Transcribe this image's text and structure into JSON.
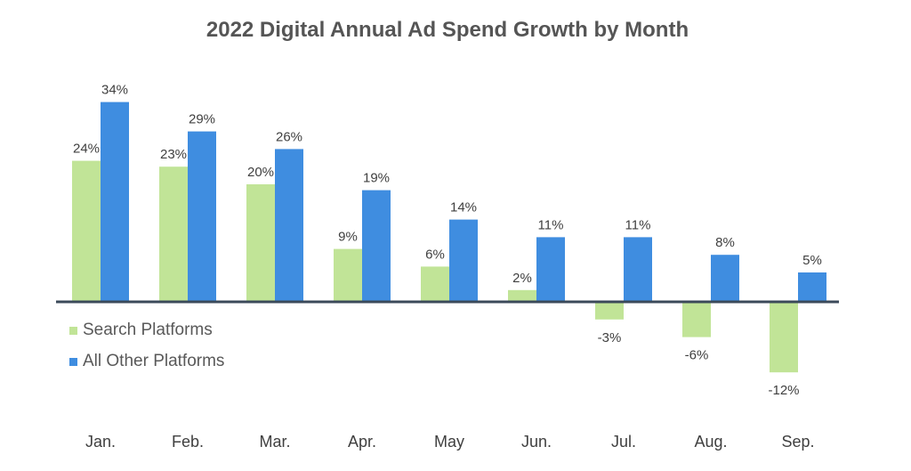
{
  "chart_data": {
    "type": "bar",
    "title": "2022 Digital Annual Ad Spend Growth by Month",
    "xlabel": "",
    "ylabel": "",
    "categories": [
      "Jan.",
      "Feb.",
      "Mar.",
      "Apr.",
      "May",
      "Jun.",
      "Jul.",
      "Aug.",
      "Sep."
    ],
    "series": [
      {
        "name": "Search Platforms",
        "color": "#c1e497",
        "values": [
          24,
          23,
          20,
          9,
          6,
          2,
          -3,
          -6,
          -12
        ],
        "labels": [
          "24%",
          "23%",
          "20%",
          "9%",
          "6%",
          "2%",
          "-3%",
          "-6%",
          "-12%"
        ]
      },
      {
        "name": "All Other Platforms",
        "color": "#3f8de0",
        "values": [
          34,
          29,
          26,
          19,
          14,
          11,
          11,
          8,
          5
        ],
        "labels": [
          "34%",
          "29%",
          "26%",
          "19%",
          "14%",
          "11%",
          "11%",
          "8%",
          "5%"
        ]
      }
    ],
    "ylim": [
      -14,
      36
    ],
    "grid": false,
    "legend": "bottom-left",
    "axis_color": "#3b4a5a"
  }
}
